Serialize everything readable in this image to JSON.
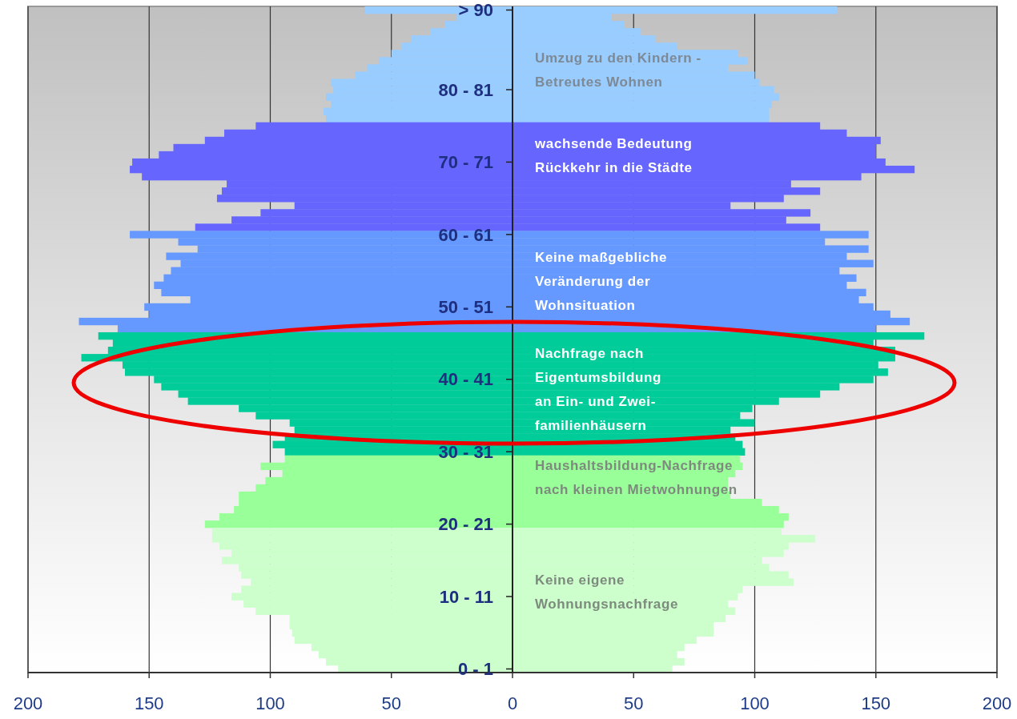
{
  "chart_data": {
    "type": "bar",
    "orientation": "horizontal",
    "stacked": true,
    "grid": "x",
    "categories": [
      "> 90",
      null,
      null,
      null,
      null,
      null,
      null,
      null,
      null,
      null,
      null,
      "80 - 81",
      null,
      null,
      null,
      null,
      null,
      null,
      null,
      null,
      null,
      "70 - 71",
      null,
      null,
      null,
      null,
      null,
      null,
      null,
      null,
      null,
      "60 - 61",
      null,
      null,
      null,
      null,
      null,
      null,
      null,
      null,
      null,
      "50 - 51",
      null,
      null,
      null,
      null,
      null,
      null,
      null,
      null,
      null,
      "40 - 41",
      null,
      null,
      null,
      null,
      null,
      null,
      null,
      null,
      null,
      "30 - 31",
      null,
      null,
      null,
      null,
      null,
      null,
      null,
      null,
      null,
      "20 - 21",
      null,
      null,
      null,
      null,
      null,
      null,
      null,
      null,
      null,
      "10 - 11",
      null,
      null,
      null,
      null,
      null,
      null,
      null,
      null,
      null,
      "0 - 1"
    ],
    "xlim": [
      -200,
      200
    ],
    "xticks": [
      {
        "value": -200,
        "label": "200"
      },
      {
        "value": -150,
        "label": "150"
      },
      {
        "value": -100,
        "label": "100"
      },
      {
        "value": -50,
        "label": "50"
      },
      0,
      50,
      100,
      150,
      200
    ],
    "series": [
      {
        "values": [
          -61,
          -23,
          -28,
          -34,
          -42,
          -46,
          -50,
          -55,
          -60,
          -65,
          -75,
          -74,
          -77,
          -75,
          -78,
          -77,
          -106,
          -119,
          -127,
          -140,
          -146,
          -157,
          -158,
          -153,
          -118,
          -120,
          -122,
          -90,
          -104,
          -116,
          -131,
          -158,
          -138,
          -130,
          -143,
          -137,
          -141,
          -144,
          -148,
          -145,
          -133,
          -152,
          -150,
          -179,
          -163,
          -171,
          -165,
          -167,
          -178,
          -161,
          -160,
          -148,
          -145,
          -138,
          -134,
          -113,
          -106,
          -92,
          -90,
          -94,
          -99,
          -94,
          -94,
          -104,
          -95,
          -102,
          -106,
          -113,
          -113,
          -115,
          -121,
          -127,
          -124,
          -124,
          -121,
          -116,
          -120,
          -113,
          -112,
          -108,
          -112,
          -116,
          -111,
          -106,
          -92,
          -92,
          -91,
          -90,
          -83,
          -80,
          -77,
          -72
        ],
        "colors": [
          "#99ccff",
          "#99ccff",
          "#99ccff",
          "#99ccff",
          "#99ccff",
          "#99ccff",
          "#99ccff",
          "#99ccff",
          "#99ccff",
          "#99ccff",
          "#99ccff",
          "#99ccff",
          "#99ccff",
          "#99ccff",
          "#99ccff",
          "#99ccff",
          "#6666ff",
          "#6666ff",
          "#6666ff",
          "#6666ff",
          "#6666ff",
          "#6666ff",
          "#6666ff",
          "#6666ff",
          "#6666ff",
          "#6666ff",
          "#6666ff",
          "#6666ff",
          "#6666ff",
          "#6666ff",
          "#6666ff",
          "#6699ff",
          "#6699ff",
          "#6699ff",
          "#6699ff",
          "#6699ff",
          "#6699ff",
          "#6699ff",
          "#6699ff",
          "#6699ff",
          "#6699ff",
          "#6699ff",
          "#6699ff",
          "#6699ff",
          "#6699ff",
          "#00cc99",
          "#00cc99",
          "#00cc99",
          "#00cc99",
          "#00cc99",
          "#00cc99",
          "#00cc99",
          "#00cc99",
          "#00cc99",
          "#00cc99",
          "#00cc99",
          "#00cc99",
          "#00cc99",
          "#00cc99",
          "#00cc99",
          "#00cc99",
          "#00cc99",
          "#99ff99",
          "#99ff99",
          "#99ff99",
          "#99ff99",
          "#99ff99",
          "#99ff99",
          "#99ff99",
          "#99ff99",
          "#99ff99",
          "#99ff99",
          "#ccffcc",
          "#ccffcc",
          "#ccffcc",
          "#ccffcc",
          "#ccffcc",
          "#ccffcc",
          "#ccffcc",
          "#ccffcc",
          "#ccffcc",
          "#ccffcc",
          "#ccffcc",
          "#ccffcc",
          "#ccffcc",
          "#ccffcc",
          "#ccffcc",
          "#ccffcc",
          "#ccffcc",
          "#ccffcc",
          "#ccffcc",
          "#ccffcc"
        ]
      },
      {
        "values": [
          134,
          41,
          46,
          53,
          59,
          68,
          93,
          97,
          89,
          100,
          102,
          108,
          110,
          107,
          106,
          106,
          127,
          138,
          152,
          150,
          150,
          154,
          166,
          144,
          115,
          127,
          112,
          90,
          123,
          113,
          127,
          147,
          129,
          147,
          138,
          149,
          135,
          142,
          138,
          146,
          143,
          149,
          156,
          164,
          150,
          170,
          149,
          158,
          158,
          151,
          155,
          149,
          135,
          127,
          110,
          99,
          94,
          100,
          90,
          92,
          95,
          96,
          94,
          95,
          92,
          89,
          89,
          90,
          103,
          110,
          114,
          112,
          111,
          125,
          114,
          112,
          103,
          106,
          114,
          116,
          95,
          93,
          89,
          92,
          88,
          83,
          83,
          76,
          71,
          68,
          71,
          66
        ],
        "colors": [
          "#99ccff",
          "#99ccff",
          "#99ccff",
          "#99ccff",
          "#99ccff",
          "#99ccff",
          "#99ccff",
          "#99ccff",
          "#99ccff",
          "#99ccff",
          "#99ccff",
          "#99ccff",
          "#99ccff",
          "#99ccff",
          "#99ccff",
          "#99ccff",
          "#6666ff",
          "#6666ff",
          "#6666ff",
          "#6666ff",
          "#6666ff",
          "#6666ff",
          "#6666ff",
          "#6666ff",
          "#6666ff",
          "#6666ff",
          "#6666ff",
          "#6666ff",
          "#6666ff",
          "#6666ff",
          "#6666ff",
          "#6699ff",
          "#6699ff",
          "#6699ff",
          "#6699ff",
          "#6699ff",
          "#6699ff",
          "#6699ff",
          "#6699ff",
          "#6699ff",
          "#6699ff",
          "#6699ff",
          "#6699ff",
          "#6699ff",
          "#6699ff",
          "#00cc99",
          "#00cc99",
          "#00cc99",
          "#00cc99",
          "#00cc99",
          "#00cc99",
          "#00cc99",
          "#00cc99",
          "#00cc99",
          "#00cc99",
          "#00cc99",
          "#00cc99",
          "#00cc99",
          "#00cc99",
          "#00cc99",
          "#00cc99",
          "#00cc99",
          "#99ff99",
          "#99ff99",
          "#99ff99",
          "#99ff99",
          "#99ff99",
          "#99ff99",
          "#99ff99",
          "#99ff99",
          "#99ff99",
          "#99ff99",
          "#ccffcc",
          "#ccffcc",
          "#ccffcc",
          "#ccffcc",
          "#ccffcc",
          "#ccffcc",
          "#ccffcc",
          "#ccffcc",
          "#ccffcc",
          "#ccffcc",
          "#ccffcc",
          "#ccffcc",
          "#ccffcc",
          "#ccffcc",
          "#ccffcc",
          "#ccffcc",
          "#ccffcc",
          "#ccffcc",
          "#ccffcc",
          "#ccffcc"
        ]
      }
    ],
    "annotations": [
      "Umzug zu den Kindern -\nBetreutes Wohnen",
      "wachsende Bedeutung\nRückkehr in die Städte",
      "Keine maßgebliche\nVeränderung der\nWohnsituation",
      "Nachfrage nach\nEigentumsbildung\nan Ein- und Zwei-\nfamilienhäusern",
      "Haushaltsbildung-Nachfrage\nnach kleinen Mietwohnungen",
      "Keine eigene\nWohnungsnachfrage"
    ]
  }
}
